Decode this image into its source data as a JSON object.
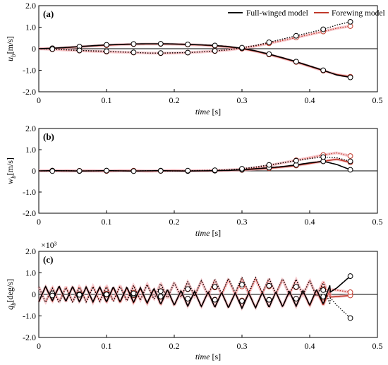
{
  "legend": {
    "full_label": "Full-winged model",
    "fore_label": "Forewing model"
  },
  "colors": {
    "full": "#000000",
    "fore": "#c0392b",
    "fore_light": "#f0a4ac"
  },
  "chart_data": [
    {
      "type": "line",
      "panel_label": "(a)",
      "xlabel": "time",
      "xunit": "[s]",
      "ylabel_main": "u",
      "ylabel_sub": "b",
      "yunit": "[m/s]",
      "xlim": [
        0,
        0.5
      ],
      "ylim": [
        -2.0,
        2.0
      ],
      "xticks": [
        "0",
        "0.1",
        "0.2",
        "0.3",
        "0.4",
        "0.5"
      ],
      "yticks": [
        "2.0",
        "1.0",
        "0",
        "-1.0",
        "-2.0"
      ],
      "multiplier": "",
      "x": [
        0,
        0.02,
        0.04,
        0.06,
        0.08,
        0.1,
        0.12,
        0.14,
        0.16,
        0.18,
        0.2,
        0.22,
        0.24,
        0.26,
        0.28,
        0.3,
        0.32,
        0.34,
        0.36,
        0.38,
        0.4,
        0.42,
        0.44,
        0.46
      ],
      "series": [
        {
          "name": "Full-winged model",
          "style": "solid",
          "values": [
            0,
            0.02,
            0.06,
            0.1,
            0.14,
            0.18,
            0.2,
            0.22,
            0.23,
            0.23,
            0.22,
            0.2,
            0.18,
            0.15,
            0.1,
            0.02,
            -0.1,
            -0.25,
            -0.42,
            -0.6,
            -0.8,
            -1.0,
            -1.22,
            -1.33
          ]
        },
        {
          "name": "Full-winged model",
          "style": "dotted",
          "values": [
            0,
            -0.02,
            -0.05,
            -0.08,
            -0.1,
            -0.12,
            -0.15,
            -0.17,
            -0.2,
            -0.2,
            -0.19,
            -0.18,
            -0.15,
            -0.1,
            -0.05,
            0.05,
            0.15,
            0.3,
            0.45,
            0.6,
            0.75,
            0.9,
            1.1,
            1.25
          ]
        },
        {
          "name": "Forewing model",
          "style": "solid",
          "values": [
            0,
            0.02,
            0.05,
            0.09,
            0.13,
            0.16,
            0.19,
            0.21,
            0.22,
            0.22,
            0.21,
            0.19,
            0.17,
            0.13,
            0.08,
            0.0,
            -0.12,
            -0.27,
            -0.44,
            -0.62,
            -0.82,
            -1.02,
            -1.2,
            -1.3
          ]
        },
        {
          "name": "Forewing model",
          "style": "dotted",
          "values": [
            0,
            -0.03,
            -0.06,
            -0.09,
            -0.12,
            -0.14,
            -0.16,
            -0.18,
            -0.2,
            -0.21,
            -0.2,
            -0.18,
            -0.15,
            -0.11,
            -0.06,
            0.03,
            0.12,
            0.25,
            0.38,
            0.52,
            0.66,
            0.8,
            0.95,
            1.05
          ]
        }
      ]
    },
    {
      "type": "line",
      "panel_label": "(b)",
      "xlabel": "time",
      "xunit": "[s]",
      "ylabel_main": "w",
      "ylabel_sub": "b",
      "yunit": "[m/s]",
      "xlim": [
        0,
        0.5
      ],
      "ylim": [
        -2.0,
        2.0
      ],
      "xticks": [
        "0",
        "0.1",
        "0.2",
        "0.3",
        "0.4",
        "0.5"
      ],
      "yticks": [
        "2.0",
        "1.0",
        "0",
        "-1.0",
        "-2.0"
      ],
      "multiplier": "",
      "x": [
        0,
        0.02,
        0.04,
        0.06,
        0.08,
        0.1,
        0.12,
        0.14,
        0.16,
        0.18,
        0.2,
        0.22,
        0.24,
        0.26,
        0.28,
        0.3,
        0.32,
        0.34,
        0.36,
        0.38,
        0.4,
        0.42,
        0.44,
        0.46
      ],
      "series": [
        {
          "name": "Full-winged model",
          "style": "solid",
          "values": [
            0,
            0.01,
            0.0,
            -0.01,
            0.0,
            0.01,
            0.0,
            -0.01,
            0.0,
            0.01,
            0.0,
            -0.01,
            0.0,
            0.01,
            0.02,
            0.05,
            0.1,
            0.15,
            0.2,
            0.28,
            0.38,
            0.45,
            0.3,
            0.05
          ]
        },
        {
          "name": "Full-winged model",
          "style": "dotted",
          "values": [
            0,
            -0.01,
            0.01,
            0.0,
            -0.01,
            0.01,
            0.0,
            -0.01,
            0.01,
            0.0,
            -0.01,
            0.01,
            0.02,
            0.03,
            0.05,
            0.1,
            0.18,
            0.28,
            0.38,
            0.48,
            0.58,
            0.65,
            0.62,
            0.45
          ]
        },
        {
          "name": "Forewing model",
          "style": "solid",
          "values": [
            0,
            0.0,
            0.01,
            0.0,
            -0.01,
            0.0,
            0.01,
            0.0,
            -0.01,
            0.0,
            0.01,
            0.0,
            0.0,
            0.01,
            0.02,
            0.04,
            0.08,
            0.12,
            0.18,
            0.25,
            0.35,
            0.45,
            0.55,
            0.4
          ]
        },
        {
          "name": "Forewing model",
          "style": "dotted",
          "values": [
            0,
            0.01,
            -0.01,
            0.0,
            0.01,
            -0.01,
            0.0,
            0.01,
            -0.01,
            0.0,
            0.01,
            0.0,
            0.01,
            0.02,
            0.04,
            0.08,
            0.15,
            0.25,
            0.38,
            0.5,
            0.62,
            0.75,
            0.85,
            0.7
          ]
        }
      ]
    },
    {
      "type": "line",
      "panel_label": "(c)",
      "xlabel": "time",
      "xunit": "[s]",
      "ylabel_main": "q",
      "ylabel_sub": "b",
      "yunit": "[deg/s]",
      "xlim": [
        0,
        0.5
      ],
      "ylim": [
        -2.0,
        2.0
      ],
      "xticks": [
        "0",
        "0.1",
        "0.2",
        "0.3",
        "0.4",
        "0.5"
      ],
      "yticks": [
        "2.0",
        "1.0",
        "0",
        "-1.0",
        "-2.0"
      ],
      "multiplier": "×10³",
      "oscillation": {
        "period": 0.02,
        "amplitude": 0.35
      },
      "x": [
        0,
        0.02,
        0.04,
        0.06,
        0.08,
        0.1,
        0.12,
        0.14,
        0.16,
        0.18,
        0.2,
        0.22,
        0.24,
        0.26,
        0.28,
        0.3,
        0.32,
        0.34,
        0.36,
        0.38,
        0.4,
        0.42,
        0.44,
        0.46
      ],
      "series": [
        {
          "name": "Full-winged model",
          "style": "solid",
          "values": [
            0,
            0.05,
            0.03,
            0.0,
            0.0,
            0.0,
            0.0,
            -0.02,
            -0.05,
            -0.1,
            -0.15,
            -0.2,
            -0.22,
            -0.25,
            -0.27,
            -0.3,
            -0.28,
            -0.25,
            -0.22,
            -0.2,
            -0.15,
            -0.1,
            0.3,
            0.85
          ]
        },
        {
          "name": "Full-winged model",
          "style": "dotted",
          "values": [
            0,
            -0.05,
            -0.03,
            -0.02,
            0.0,
            0.0,
            0.02,
            0.05,
            0.1,
            0.15,
            0.2,
            0.25,
            0.3,
            0.35,
            0.4,
            0.45,
            0.45,
            0.4,
            0.38,
            0.35,
            0.3,
            0.2,
            -0.5,
            -1.1
          ]
        },
        {
          "name": "Forewing model",
          "style": "solid",
          "values": [
            0,
            0.02,
            0.02,
            0.0,
            -0.02,
            -0.02,
            -0.03,
            -0.05,
            -0.08,
            -0.12,
            -0.16,
            -0.2,
            -0.22,
            -0.24,
            -0.26,
            -0.28,
            -0.27,
            -0.25,
            -0.22,
            -0.2,
            -0.18,
            -0.15,
            -0.1,
            -0.05
          ]
        },
        {
          "name": "Forewing model",
          "style": "dotted",
          "values": [
            0,
            -0.02,
            0.0,
            0.02,
            0.03,
            0.04,
            0.06,
            0.08,
            0.12,
            0.16,
            0.2,
            0.24,
            0.28,
            0.32,
            0.35,
            0.37,
            0.38,
            0.37,
            0.35,
            0.33,
            0.3,
            0.25,
            0.2,
            0.1
          ]
        }
      ]
    }
  ]
}
